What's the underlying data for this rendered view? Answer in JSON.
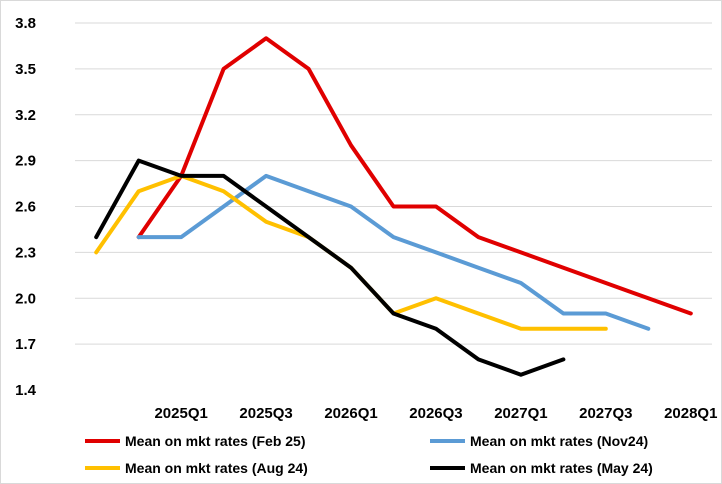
{
  "chart_data": {
    "type": "line",
    "title": "",
    "xlabel": "",
    "ylabel": "",
    "categories": [
      "2024Q3",
      "2024Q4",
      "2025Q1",
      "2025Q2",
      "2025Q3",
      "2025Q4",
      "2026Q1",
      "2026Q2",
      "2026Q3",
      "2026Q4",
      "2027Q1",
      "2027Q2",
      "2027Q3",
      "2027Q4",
      "2028Q1"
    ],
    "x_tick_labels": [
      "2025Q1",
      "2025Q3",
      "2026Q1",
      "2026Q3",
      "2027Q1",
      "2027Q3",
      "2028Q1"
    ],
    "ylim": [
      1.4,
      3.8
    ],
    "y_ticks": [
      "1.4",
      "1.7",
      "2.0",
      "2.3",
      "2.6",
      "2.9",
      "3.2",
      "3.5",
      "3.8"
    ],
    "grid": "horizontal",
    "legend_position": "bottom",
    "series": [
      {
        "name": "Mean on mkt rates (Feb 25)",
        "color": "#e00000",
        "points": [
          [
            "2024Q4",
            2.4
          ],
          [
            "2025Q1",
            2.8
          ],
          [
            "2025Q2",
            3.5
          ],
          [
            "2025Q3",
            3.7
          ],
          [
            "2025Q4",
            3.5
          ],
          [
            "2026Q1",
            3.0
          ],
          [
            "2026Q2",
            2.6
          ],
          [
            "2026Q3",
            2.6
          ],
          [
            "2026Q4",
            2.4
          ],
          [
            "2027Q1",
            2.3
          ],
          [
            "2027Q2",
            2.2
          ],
          [
            "2027Q3",
            2.1
          ],
          [
            "2027Q4",
            2.0
          ],
          [
            "2028Q1",
            1.9
          ]
        ]
      },
      {
        "name": "Mean on mkt rates (Nov24)",
        "color": "#5b9bd5",
        "points": [
          [
            "2024Q4",
            2.4
          ],
          [
            "2025Q1",
            2.4
          ],
          [
            "2025Q2",
            2.6
          ],
          [
            "2025Q3",
            2.8
          ],
          [
            "2025Q4",
            2.7
          ],
          [
            "2026Q1",
            2.6
          ],
          [
            "2026Q2",
            2.4
          ],
          [
            "2026Q3",
            2.3
          ],
          [
            "2026Q4",
            2.2
          ],
          [
            "2027Q1",
            2.1
          ],
          [
            "2027Q2",
            1.9
          ],
          [
            "2027Q3",
            1.9
          ],
          [
            "2027Q4",
            1.8
          ]
        ]
      },
      {
        "name": "Mean on mkt rates (Aug 24)",
        "color": "#ffc000",
        "points": [
          [
            "2024Q3",
            2.3
          ],
          [
            "2024Q4",
            2.7
          ],
          [
            "2025Q1",
            2.8
          ],
          [
            "2025Q2",
            2.7
          ],
          [
            "2025Q3",
            2.5
          ],
          [
            "2025Q4",
            2.4
          ],
          [
            "2026Q1",
            2.2
          ],
          [
            "2026Q2",
            1.9
          ],
          [
            "2026Q3",
            2.0
          ],
          [
            "2026Q4",
            1.9
          ],
          [
            "2027Q1",
            1.8
          ],
          [
            "2027Q2",
            1.8
          ],
          [
            "2027Q3",
            1.8
          ]
        ]
      },
      {
        "name": "Mean on mkt rates (May 24)",
        "color": "#000000",
        "points": [
          [
            "2024Q3",
            2.4
          ],
          [
            "2024Q4",
            2.9
          ],
          [
            "2025Q1",
            2.8
          ],
          [
            "2025Q2",
            2.8
          ],
          [
            "2025Q3",
            2.6
          ],
          [
            "2025Q4",
            2.4
          ],
          [
            "2026Q1",
            2.2
          ],
          [
            "2026Q2",
            1.9
          ],
          [
            "2026Q3",
            1.8
          ],
          [
            "2026Q4",
            1.6
          ],
          [
            "2027Q1",
            1.5
          ],
          [
            "2027Q2",
            1.6
          ]
        ]
      }
    ]
  }
}
